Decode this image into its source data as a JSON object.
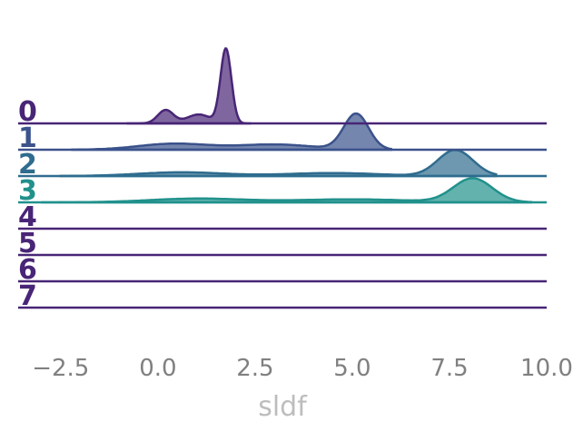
{
  "chart_data": {
    "type": "ridgeline",
    "xlabel": "sldf",
    "xlim": [
      -3.5,
      10.0
    ],
    "xticks": [
      -2.5,
      0.0,
      2.5,
      5.0,
      7.5,
      10.0
    ],
    "xtick_labels": [
      "−2.5",
      "0.0",
      "2.5",
      "5.0",
      "7.5",
      "10.0"
    ],
    "grid": false,
    "legend": "none",
    "series": [
      {
        "name": "0",
        "color": "#482576",
        "range": [
          -0.8,
          2.4
        ],
        "peaks": [
          {
            "mu": 1.75,
            "sigma": 0.14,
            "h": 1.0
          },
          {
            "mu": 0.2,
            "sigma": 0.2,
            "h": 0.18
          },
          {
            "mu": 1.05,
            "sigma": 0.3,
            "h": 0.12
          }
        ]
      },
      {
        "name": "1",
        "color": "#3b528b",
        "range": [
          -2.2,
          6.0
        ],
        "peaks": [
          {
            "mu": 5.1,
            "sigma": 0.32,
            "h": 0.48
          },
          {
            "mu": 0.4,
            "sigma": 0.9,
            "h": 0.08
          },
          {
            "mu": 3.0,
            "sigma": 1.0,
            "h": 0.07
          }
        ]
      },
      {
        "name": "2",
        "color": "#2f6c8e",
        "range": [
          -2.5,
          8.7
        ],
        "peaks": [
          {
            "mu": 7.65,
            "sigma": 0.45,
            "h": 0.35
          },
          {
            "mu": 0.6,
            "sigma": 1.1,
            "h": 0.05
          },
          {
            "mu": 4.5,
            "sigma": 1.2,
            "h": 0.04
          }
        ]
      },
      {
        "name": "3",
        "color": "#21918c",
        "range": [
          -3.0,
          9.6
        ],
        "peaks": [
          {
            "mu": 8.1,
            "sigma": 0.5,
            "h": 0.32
          },
          {
            "mu": 1.0,
            "sigma": 1.2,
            "h": 0.05
          },
          {
            "mu": 5.0,
            "sigma": 1.5,
            "h": 0.04
          }
        ]
      },
      {
        "name": "4",
        "color": "#482576",
        "range": null,
        "peaks": []
      },
      {
        "name": "5",
        "color": "#482576",
        "range": null,
        "peaks": []
      },
      {
        "name": "6",
        "color": "#482576",
        "range": null,
        "peaks": []
      },
      {
        "name": "7",
        "color": "#482576",
        "range": null,
        "peaks": []
      }
    ]
  }
}
